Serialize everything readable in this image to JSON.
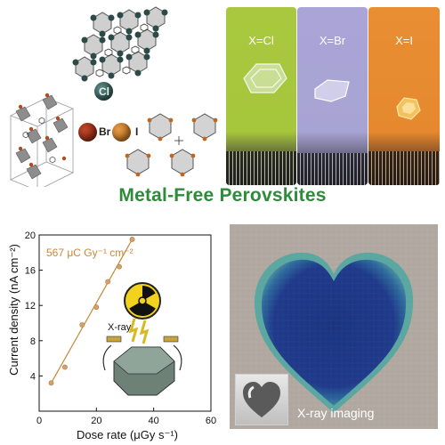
{
  "title": "Metal-Free Perovskites",
  "legend": {
    "cl": "Cl",
    "br": "Br",
    "i": "I"
  },
  "crystal_photos": [
    {
      "label": "X=Cl",
      "color": "#a6c63c"
    },
    {
      "label": "X=Br",
      "color": "#a7a3d3"
    },
    {
      "label": "X=I",
      "color": "#e6892e"
    }
  ],
  "chart_data": {
    "type": "scatter",
    "xlabel": "Dose rate (μGy s⁻¹)",
    "ylabel": "Current density (nA cm⁻²)",
    "xlim": [
      0,
      60
    ],
    "ylim": [
      0,
      20
    ],
    "x_ticks": [
      "0",
      "20",
      "40",
      "60"
    ],
    "y_ticks": [
      "4",
      "8",
      "12",
      "16",
      "20"
    ],
    "annotation": "567 μC Gy⁻¹ cm⁻²",
    "series": [
      {
        "x": [
          4.2,
          9.0,
          15.0,
          20.0,
          24.0,
          28.0,
          32.5
        ],
        "y": [
          3.2,
          5.0,
          9.8,
          11.8,
          14.7,
          16.4,
          19.5
        ]
      }
    ],
    "fit_line": {
      "x": [
        4.2,
        32.5
      ],
      "y": [
        3.2,
        19.5
      ]
    },
    "colors": {
      "points": "#d9a06b",
      "line": "#c8873a",
      "annotation": "#c8873a"
    }
  },
  "device_label": "X-ray",
  "xray_image": {
    "caption": "X-ray imaging",
    "background": "#b0a89f",
    "heart_color": "#1f3a8a"
  }
}
